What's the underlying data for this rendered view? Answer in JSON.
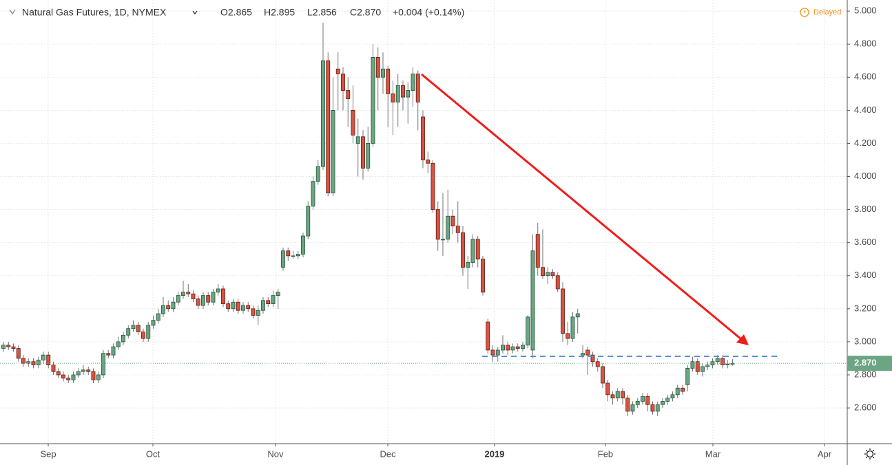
{
  "chart_data": {
    "type": "candlestick",
    "title": "Natural Gas Futures, 1D, NYMEX",
    "ohlc_header": [
      "O2.865",
      "H2.895",
      "L2.856",
      "C2.870",
      "+0.004 (+0.14%)"
    ],
    "status": "Delayed",
    "last_label": "2.870",
    "up_color": "#6ba583",
    "down_color": "#d75442",
    "open": [
      2.96,
      2.98,
      2.97,
      2.96,
      2.9,
      2.87,
      2.88,
      2.86,
      2.89,
      2.92,
      2.86,
      2.82,
      2.8,
      2.78,
      2.77,
      2.8,
      2.82,
      2.83,
      2.82,
      2.77,
      2.8,
      2.93,
      2.92,
      2.97,
      3.0,
      3.04,
      3.08,
      3.1,
      3.06,
      3.02,
      3.1,
      3.13,
      3.17,
      3.22,
      3.2,
      3.24,
      3.28,
      3.3,
      3.29,
      3.26,
      3.22,
      3.28,
      3.24,
      3.3,
      3.32,
      3.23,
      3.2,
      3.24,
      3.19,
      3.22,
      3.2,
      3.16,
      3.19,
      3.25,
      3.23,
      3.28,
      3.45,
      3.55,
      3.52,
      3.52,
      3.53,
      3.64,
      3.82,
      3.97,
      4.06,
      4.7,
      3.9,
      4.65,
      4.62,
      4.52,
      4.4,
      4.2,
      4.24,
      4.05,
      4.2,
      4.72,
      4.6,
      4.65,
      4.5,
      4.45,
      4.55,
      4.48,
      4.52,
      4.62,
      4.36,
      4.1,
      4.08,
      3.8,
      3.62,
      3.62,
      3.76,
      3.7,
      3.66,
      3.45,
      3.48,
      3.62,
      3.5,
      3.12,
      2.95,
      2.92,
      2.95,
      2.98,
      2.95,
      2.97,
      2.96,
      2.98,
      2.95,
      3.65,
      3.45,
      3.4,
      3.42,
      3.4,
      3.32,
      3.05,
      3.02,
      3.15,
      2.92,
      2.95,
      2.92,
      2.88,
      2.85,
      2.75,
      2.68,
      2.66,
      2.7,
      2.66,
      2.58,
      2.62,
      2.64,
      2.67,
      2.62,
      2.58,
      2.62,
      2.64,
      2.66,
      2.68,
      2.72,
      2.74,
      2.84,
      2.88,
      2.82,
      2.85,
      2.86,
      2.88,
      2.9,
      2.86,
      2.865
    ],
    "high": [
      3.0,
      3.0,
      2.99,
      2.98,
      2.92,
      2.9,
      2.9,
      2.91,
      2.94,
      2.94,
      2.88,
      2.84,
      2.82,
      2.8,
      2.82,
      2.84,
      2.86,
      2.85,
      2.84,
      2.82,
      2.95,
      2.95,
      2.99,
      3.03,
      3.06,
      3.1,
      3.13,
      3.12,
      3.08,
      3.12,
      3.16,
      3.2,
      3.27,
      3.25,
      3.27,
      3.3,
      3.37,
      3.35,
      3.31,
      3.28,
      3.3,
      3.3,
      3.32,
      3.35,
      3.34,
      3.25,
      3.26,
      3.26,
      3.24,
      3.24,
      3.22,
      3.22,
      3.27,
      3.27,
      3.31,
      3.32,
      3.57,
      3.57,
      3.55,
      3.55,
      3.66,
      3.85,
      4.0,
      4.1,
      4.93,
      4.75,
      4.6,
      4.75,
      4.66,
      4.6,
      4.55,
      4.35,
      4.28,
      4.3,
      4.8,
      4.78,
      4.75,
      4.67,
      4.58,
      4.62,
      4.58,
      4.57,
      4.66,
      4.64,
      4.4,
      4.15,
      4.1,
      3.85,
      3.9,
      3.92,
      3.8,
      3.85,
      3.7,
      3.52,
      3.65,
      3.64,
      3.52,
      3.14,
      2.98,
      2.97,
      3.04,
      3.0,
      2.99,
      2.99,
      3.0,
      3.16,
      3.65,
      3.72,
      3.68,
      3.45,
      3.44,
      3.42,
      3.36,
      3.12,
      3.18,
      3.2,
      2.98,
      2.97,
      2.94,
      2.9,
      2.87,
      2.77,
      2.7,
      2.72,
      2.72,
      2.68,
      2.64,
      2.66,
      2.69,
      2.69,
      2.64,
      2.64,
      2.66,
      2.68,
      2.7,
      2.74,
      2.74,
      2.86,
      2.91,
      2.9,
      2.87,
      2.88,
      2.9,
      2.92,
      2.92,
      2.89,
      2.895
    ],
    "low": [
      2.94,
      2.95,
      2.94,
      2.88,
      2.85,
      2.85,
      2.84,
      2.84,
      2.87,
      2.84,
      2.8,
      2.78,
      2.76,
      2.75,
      2.75,
      2.78,
      2.8,
      2.8,
      2.75,
      2.75,
      2.78,
      2.9,
      2.9,
      2.95,
      2.98,
      3.02,
      3.06,
      3.04,
      3.0,
      3.0,
      3.08,
      3.11,
      3.15,
      3.18,
      3.18,
      3.22,
      3.26,
      3.27,
      3.24,
      3.2,
      3.2,
      3.22,
      3.22,
      3.28,
      3.21,
      3.18,
      3.18,
      3.17,
      3.17,
      3.18,
      3.14,
      3.1,
      3.17,
      3.21,
      3.21,
      3.2,
      3.43,
      3.49,
      3.5,
      3.5,
      3.51,
      3.62,
      3.8,
      3.95,
      4.04,
      3.88,
      3.88,
      4.4,
      4.4,
      4.3,
      4.2,
      4.0,
      3.98,
      4.03,
      4.18,
      4.4,
      4.5,
      4.3,
      4.25,
      4.3,
      4.4,
      4.32,
      4.42,
      4.28,
      4.05,
      4.02,
      3.78,
      3.55,
      3.52,
      3.6,
      3.65,
      3.6,
      3.4,
      3.32,
      3.45,
      3.45,
      3.28,
      2.93,
      2.88,
      2.88,
      2.93,
      2.92,
      2.93,
      2.94,
      2.94,
      2.96,
      2.9,
      3.4,
      3.38,
      3.35,
      3.38,
      3.3,
      3.0,
      2.98,
      3.0,
      3.05,
      2.9,
      2.8,
      2.85,
      2.82,
      2.72,
      2.64,
      2.62,
      2.64,
      2.62,
      2.55,
      2.56,
      2.6,
      2.62,
      2.58,
      2.56,
      2.55,
      2.6,
      2.62,
      2.64,
      2.66,
      2.68,
      2.7,
      2.82,
      2.8,
      2.79,
      2.83,
      2.84,
      2.86,
      2.84,
      2.84,
      2.856
    ],
    "close": [
      2.98,
      2.97,
      2.96,
      2.9,
      2.87,
      2.88,
      2.86,
      2.89,
      2.92,
      2.86,
      2.82,
      2.8,
      2.78,
      2.77,
      2.8,
      2.82,
      2.83,
      2.82,
      2.77,
      2.8,
      2.93,
      2.92,
      2.97,
      3.0,
      3.04,
      3.08,
      3.1,
      3.06,
      3.02,
      3.1,
      3.13,
      3.17,
      3.22,
      3.2,
      3.24,
      3.28,
      3.3,
      3.29,
      3.26,
      3.22,
      3.28,
      3.24,
      3.3,
      3.32,
      3.23,
      3.2,
      3.24,
      3.19,
      3.22,
      3.2,
      3.16,
      3.19,
      3.25,
      3.23,
      3.28,
      3.3,
      3.55,
      3.52,
      3.52,
      3.53,
      3.64,
      3.82,
      3.97,
      4.06,
      4.7,
      3.9,
      4.4,
      4.62,
      4.52,
      4.47,
      4.25,
      4.24,
      4.05,
      4.2,
      4.72,
      4.6,
      4.65,
      4.5,
      4.45,
      4.55,
      4.48,
      4.52,
      4.62,
      4.45,
      4.1,
      4.08,
      3.8,
      3.62,
      3.62,
      3.76,
      3.7,
      3.66,
      3.45,
      3.48,
      3.62,
      3.5,
      3.3,
      2.95,
      2.92,
      2.95,
      2.98,
      2.95,
      2.97,
      2.96,
      2.98,
      3.15,
      3.55,
      3.45,
      3.4,
      3.42,
      3.4,
      3.32,
      3.05,
      3.02,
      3.15,
      3.17,
      2.93,
      2.92,
      2.88,
      2.85,
      2.75,
      2.68,
      2.66,
      2.7,
      2.66,
      2.58,
      2.62,
      2.64,
      2.67,
      2.62,
      2.58,
      2.62,
      2.64,
      2.66,
      2.68,
      2.72,
      2.7,
      2.84,
      2.88,
      2.82,
      2.85,
      2.86,
      2.88,
      2.9,
      2.86,
      2.866,
      2.87
    ],
    "xlim": [
      -0.69,
      168.97
    ],
    "xticks": [
      {
        "value": 8.97,
        "label": "Sep"
      },
      {
        "value": 29.93,
        "label": "Oct"
      },
      {
        "value": 54.48,
        "label": "Nov"
      },
      {
        "value": 76.97,
        "label": "Dec"
      },
      {
        "value": 98.34,
        "label": "2019"
      },
      {
        "value": 120.55,
        "label": "Feb"
      },
      {
        "value": 142.07,
        "label": "Mar"
      },
      {
        "value": 164.41,
        "label": "Apr"
      }
    ],
    "ylim": [
      2.384,
      5.067
    ],
    "yticks": [
      {
        "value": 2.6,
        "label": "2.600"
      },
      {
        "value": 2.8,
        "label": "2.800"
      },
      {
        "value": 3.0,
        "label": "3.000"
      },
      {
        "value": 3.2,
        "label": "3.200"
      },
      {
        "value": 3.4,
        "label": "3.400"
      },
      {
        "value": 3.6,
        "label": "3.600"
      },
      {
        "value": 3.8,
        "label": "3.800"
      },
      {
        "value": 4.0,
        "label": "4.000"
      },
      {
        "value": 4.2,
        "label": "4.200"
      },
      {
        "value": 4.4,
        "label": "4.400"
      },
      {
        "value": 4.6,
        "label": "4.600"
      },
      {
        "value": 4.8,
        "label": "4.800"
      },
      {
        "value": 5.0,
        "label": "5.000"
      }
    ],
    "grid": true
  }
}
